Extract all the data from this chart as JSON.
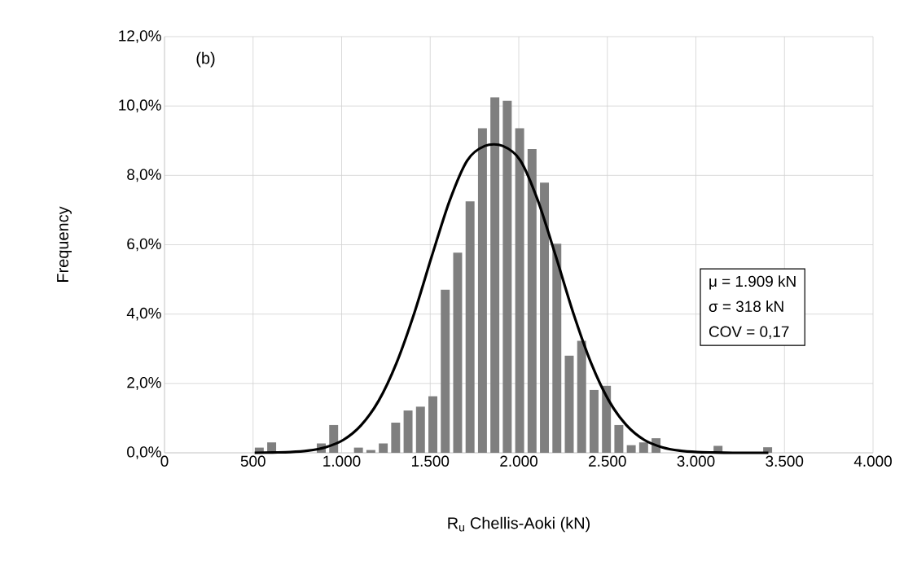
{
  "chart_data": {
    "type": "histogram",
    "xlabel": "R$_{u}$ Chellis-Aoki (kN)",
    "ylabel": "Frequency",
    "bins": [
      500,
      570,
      640,
      710,
      780,
      850,
      920,
      990,
      1060,
      1130,
      1200,
      1270,
      1340,
      1410,
      1480,
      1550,
      1620,
      1690,
      1760,
      1830,
      1900,
      1970,
      2040,
      2110,
      2180,
      2250,
      2320,
      2390,
      2460,
      2530,
      2600,
      2670,
      2740,
      2810,
      2880,
      2950,
      3020,
      3090,
      3160,
      3230,
      3300,
      3370,
      3440
    ],
    "values": [
      0.15,
      0.3,
      0,
      0,
      0,
      0.27,
      0.8,
      0,
      0.15,
      0.08,
      0.27,
      0.87,
      1.22,
      1.33,
      1.63,
      4.7,
      5.77,
      7.25,
      9.36,
      10.25,
      10.15,
      9.36,
      8.76,
      7.79,
      6.03,
      2.8,
      3.23,
      1.81,
      1.93,
      0.8,
      0.22,
      0.3,
      0.42,
      0,
      0,
      0,
      0,
      0.2,
      0,
      0,
      0,
      0.16
    ],
    "color": "#7f7f7f",
    "series": [
      {
        "type": "line",
        "color": "#000000",
        "x": [
          509,
          609,
          709,
          809,
          909,
          1009,
          1109,
          1209,
          1309,
          1409,
          1509,
          1609,
          1709,
          1809,
          1909,
          2009,
          2109,
          2209,
          2309,
          2409,
          2509,
          2609,
          2709,
          2809,
          2909,
          3009,
          3109,
          3209,
          3309,
          3409
        ],
        "values": [
          0,
          0.01,
          0.02,
          0.06,
          0.16,
          0.37,
          0.79,
          1.5,
          2.58,
          4.01,
          5.67,
          7.26,
          8.43,
          8.85,
          8.85,
          8.43,
          7.26,
          5.67,
          4.01,
          2.58,
          1.5,
          0.79,
          0.37,
          0.16,
          0.06,
          0.02,
          0.01,
          0,
          0,
          0
        ]
      }
    ],
    "xlim": [
      0,
      4000
    ],
    "xticks": [
      0,
      500,
      {
        "value": 1000,
        "label": "1.000"
      },
      {
        "value": 1500,
        "label": "1.500"
      },
      {
        "value": 2000,
        "label": "2.000"
      },
      {
        "value": 2500,
        "label": "2.500"
      },
      {
        "value": 3000,
        "label": "3.000"
      },
      {
        "value": 3500,
        "label": "3.500"
      },
      {
        "value": 4000,
        "label": "4.000"
      }
    ],
    "ylim": [
      0,
      12
    ],
    "yticks": [
      {
        "value": 0,
        "label": "0,0%"
      },
      {
        "value": 2,
        "label": "2,0%"
      },
      {
        "value": 4,
        "label": "4,0%"
      },
      {
        "value": 6,
        "label": "6,0%"
      },
      {
        "value": 8,
        "label": "8,0%"
      },
      {
        "value": 10,
        "label": "10,0%"
      },
      {
        "value": 12,
        "label": "12,0%"
      }
    ],
    "grid": true,
    "annotations": [
      "(b)",
      "μ = 1.909 kN",
      "σ = 318 kN",
      "COV = 0,17"
    ]
  }
}
